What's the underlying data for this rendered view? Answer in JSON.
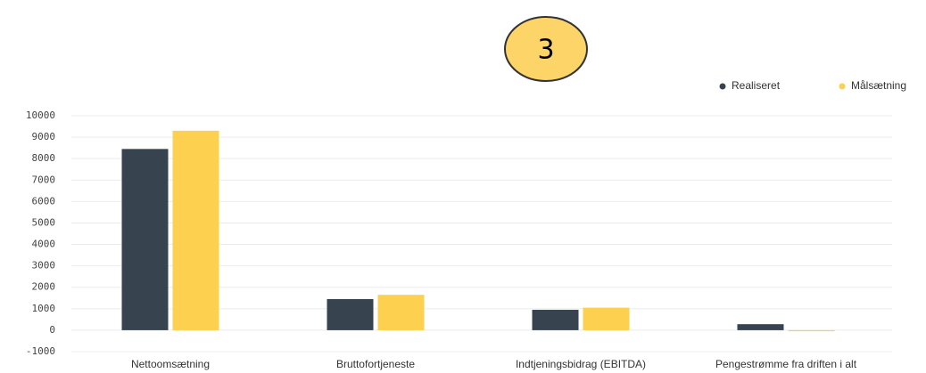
{
  "chart_data": {
    "type": "bar",
    "annotation": "3",
    "categories": [
      "Nettoomsætning",
      "Bruttofortjeneste",
      "Indtjeningsbidrag (EBITDA)",
      "Pengestrømme fra driften i alt"
    ],
    "series": [
      {
        "name": "Realiseret",
        "color": "#37434f",
        "values": [
          8450,
          1450,
          950,
          280
        ]
      },
      {
        "name": "Målsætning",
        "color": "#fdd04f",
        "values": [
          9300,
          1650,
          1050,
          -50
        ]
      }
    ],
    "ylim": [
      -1000,
      10000
    ],
    "yticks": [
      -1000,
      0,
      1000,
      2000,
      3000,
      4000,
      5000,
      6000,
      7000,
      8000,
      9000,
      10000
    ],
    "grid": true,
    "legend": "top-right"
  }
}
